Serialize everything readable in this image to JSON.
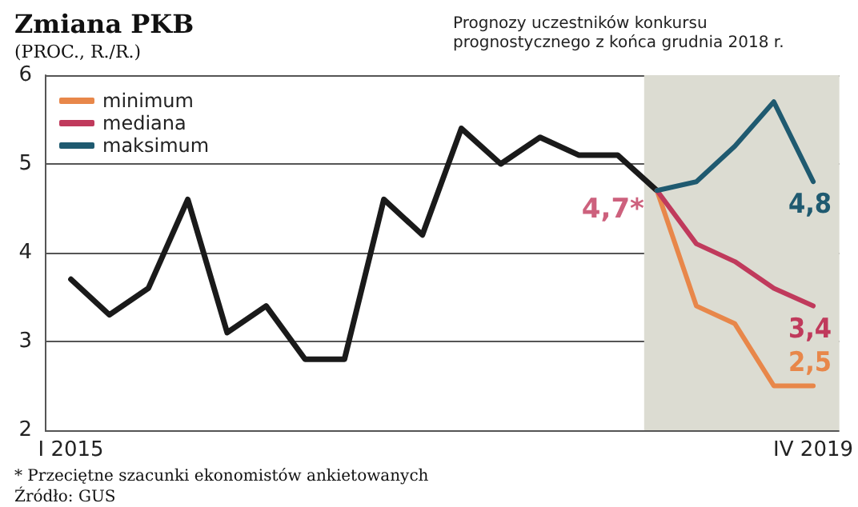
{
  "chart_data": {
    "type": "line",
    "title": "Zmiana PKB",
    "ylabel": "(PROC., R./R.)",
    "subtitle": "Prognozy uczestników konkursu prognostycznego z końca grudnia 2018 r.",
    "annotations": [
      {
        "text": "4,7*",
        "x": "2018-10",
        "y": 4.7
      },
      "* Przeciętne szacunki ekonomistów ankietowanych",
      "Źródło: GUS"
    ],
    "x": [
      "2015-01",
      "2015-04",
      "2015-07",
      "2015-10",
      "2016-01",
      "2016-04",
      "2016-07",
      "2016-10",
      "2017-01",
      "2017-04",
      "2017-07",
      "2017-10",
      "2018-01",
      "2018-04",
      "2018-07",
      "2018-10"
    ],
    "series": [
      {
        "color": "#1a1a1a",
        "values": [
          3.7,
          3.3,
          3.6,
          4.6,
          3.1,
          3.4,
          2.8,
          2.8,
          4.6,
          4.2,
          5.4,
          5.0,
          5.3,
          5.1,
          5.1,
          4.7
        ]
      },
      {
        "name": "minimum",
        "color": "#e8874a",
        "x": [
          "2018-10",
          "2019-01",
          "2019-04",
          "2019-07",
          "2019-10"
        ],
        "values": [
          4.7,
          3.4,
          3.2,
          2.5,
          2.5
        ],
        "value_labels": [
          null,
          null,
          null,
          null,
          "2,5"
        ]
      },
      {
        "name": "mediana",
        "color": "#c03a5c",
        "x": [
          "2018-10",
          "2019-01",
          "2019-04",
          "2019-07",
          "2019-10"
        ],
        "values": [
          4.7,
          4.1,
          3.9,
          3.6,
          3.4
        ],
        "value_labels": [
          null,
          null,
          null,
          null,
          "3,4"
        ]
      },
      {
        "name": "maksimum",
        "color": "#1f5a70",
        "x": [
          "2018-10",
          "2019-01",
          "2019-04",
          "2019-07",
          "2019-10"
        ],
        "values": [
          4.7,
          4.8,
          5.2,
          5.7,
          4.8
        ],
        "value_labels": [
          null,
          null,
          null,
          null,
          "4,8"
        ]
      }
    ],
    "xlim": [
      "2014-11",
      "2019-12"
    ],
    "xticks": [
      {
        "value": "2015-01",
        "label": "I 2015"
      },
      {
        "value": "2019-10",
        "label": "IV 2019"
      }
    ],
    "ylim": [
      2,
      6
    ],
    "yticks": [
      2,
      3,
      4,
      5,
      6
    ],
    "grid": "y",
    "legend": "top left",
    "marker": "none",
    "line_style": "solid",
    "bands": [
      {
        "axis": "x",
        "from": "2018-09",
        "to": "2019-12",
        "color": "#dcdcd2"
      }
    ]
  }
}
